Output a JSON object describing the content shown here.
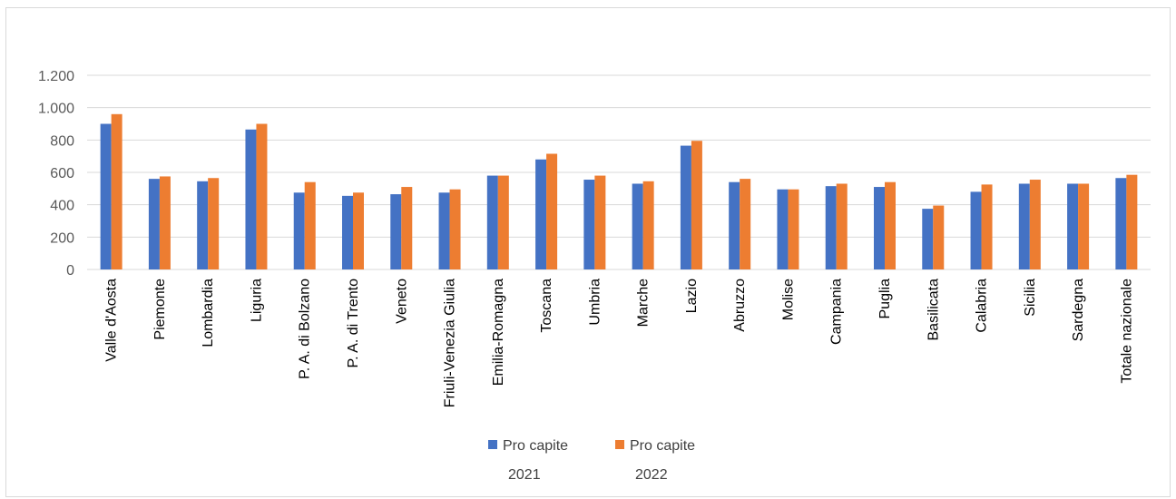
{
  "chart_data": {
    "type": "bar",
    "categories": [
      "Valle d'Aosta",
      "Piemonte",
      "Lombardia",
      "Liguria",
      "P. A. di Bolzano",
      "P. A. di Trento",
      "Veneto",
      "Friuli-Venezia Giulia",
      "Emilia-Romagna",
      "Toscana",
      "Umbria",
      "Marche",
      "Lazio",
      "Abruzzo",
      "Molise",
      "Campania",
      "Puglia",
      "Basilicata",
      "Calabria",
      "Sicilia",
      "Sardegna",
      "Totale nazionale"
    ],
    "series": [
      {
        "name": "Pro capite 2021",
        "color": "#4472c4",
        "values": [
          900,
          560,
          545,
          865,
          475,
          455,
          465,
          475,
          580,
          680,
          555,
          530,
          765,
          540,
          495,
          515,
          510,
          375,
          480,
          530,
          530,
          565
        ]
      },
      {
        "name": "Pro capite 2022",
        "color": "#ed7d31",
        "values": [
          960,
          575,
          565,
          900,
          540,
          475,
          510,
          495,
          580,
          715,
          580,
          545,
          795,
          560,
          495,
          530,
          540,
          395,
          525,
          555,
          530,
          585
        ]
      }
    ],
    "ylim": [
      0,
      1200
    ],
    "yticks": [
      0,
      200,
      400,
      600,
      800,
      1000,
      1200
    ],
    "ytick_labels": [
      "0",
      "200",
      "400",
      "600",
      "800",
      "1.000",
      "1.200"
    ],
    "grid": true,
    "legend_position": "bottom",
    "legend_lines": [
      [
        "Pro capite",
        "2021"
      ],
      [
        "Pro capite",
        "2022"
      ]
    ],
    "title": "",
    "xlabel": "",
    "ylabel": ""
  }
}
